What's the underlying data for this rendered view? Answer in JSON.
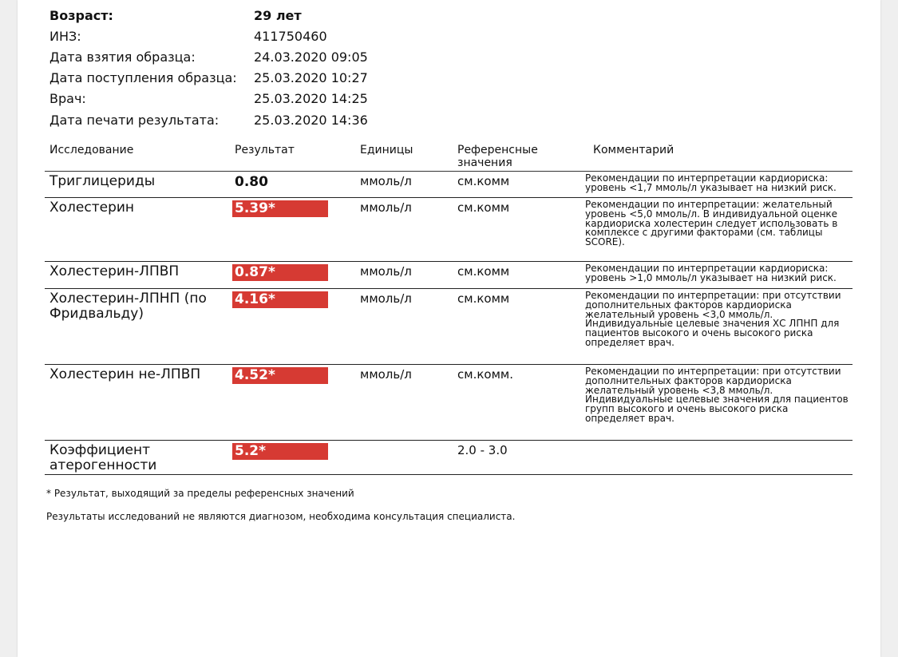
{
  "patient": [
    {
      "label": "Возраст:",
      "value": "29 лет",
      "bold": true
    },
    {
      "label": "ИНЗ:",
      "value": "411750460"
    },
    {
      "label": "Дата взятия образца:",
      "value": "24.03.2020 09:05"
    },
    {
      "label": "Дата поступления образца:",
      "value": "25.03.2020 10:27"
    },
    {
      "label": "Врач:",
      "value": "25.03.2020 14:25"
    },
    {
      "label": "Дата печати результата:",
      "value": "25.03.2020 14:36"
    }
  ],
  "table": {
    "headers": [
      "Исследование",
      "Результат",
      "Единицы",
      "Референсные значения",
      "Комментарий"
    ],
    "rows": [
      {
        "name": "Триглицериды",
        "result": "0.80",
        "flag": false,
        "unit": "ммоль/л",
        "ref": "см.комм",
        "comment": "Рекомендации по интерпретации кардиориска: уровень <1,7 ммоль/л указывает на низкий риск."
      },
      {
        "name": "Холестерин",
        "result": "5.39*",
        "flag": true,
        "unit": "ммоль/л",
        "ref": "см.комм",
        "comment": "Рекомендации по интерпретации: желательный уровень <5,0 ммоль/л. В индивидуальной оценке кардиориска холестерин следует использовать в комплексе с другими факторами (см. таблицы SCORE)."
      },
      {
        "name": "Холестерин-ЛПВП",
        "result": "0.87*",
        "flag": true,
        "unit": "ммоль/л",
        "ref": "см.комм",
        "comment": "Рекомендации по интерпретации кардиориска: уровень >1,0 ммоль/л указывает на низкий риск."
      },
      {
        "name": "Холестерин-ЛПНП (по Фридвальду)",
        "result": "4.16*",
        "flag": true,
        "unit": "ммоль/л",
        "ref": "см.комм",
        "comment": "Рекомендации по интерпретации: при отсутствии дополнительных факторов кардиориска желательный уровень <3,0 ммоль/л. Индивидуальные целевые значения ХС ЛПНП для пациентов высокого и очень высокого риска определяет врач."
      },
      {
        "name": "Холестерин не-ЛПВП",
        "result": "4.52*",
        "flag": true,
        "unit": "ммоль/л",
        "ref": "см.комм.",
        "comment": "Рекомендации по интерпретации: при отсутствии дополнительных факторов кардиориска желательный уровень <3,8 ммоль/л. Индивидуальные целевые значения для пациентов групп высокого и очень высокого риска определяет врач."
      },
      {
        "name": "Коэффициент атерогенности",
        "result": "5.2*",
        "flag": true,
        "unit": "",
        "ref": "2.0 - 3.0",
        "comment": ""
      }
    ]
  },
  "footnote": "* Результат, выходящий за пределы референсных значений",
  "disclaimer": "Результаты исследований не являются диагнозом, необходима консультация специалиста.",
  "colors": {
    "flag": "#d63a33"
  }
}
